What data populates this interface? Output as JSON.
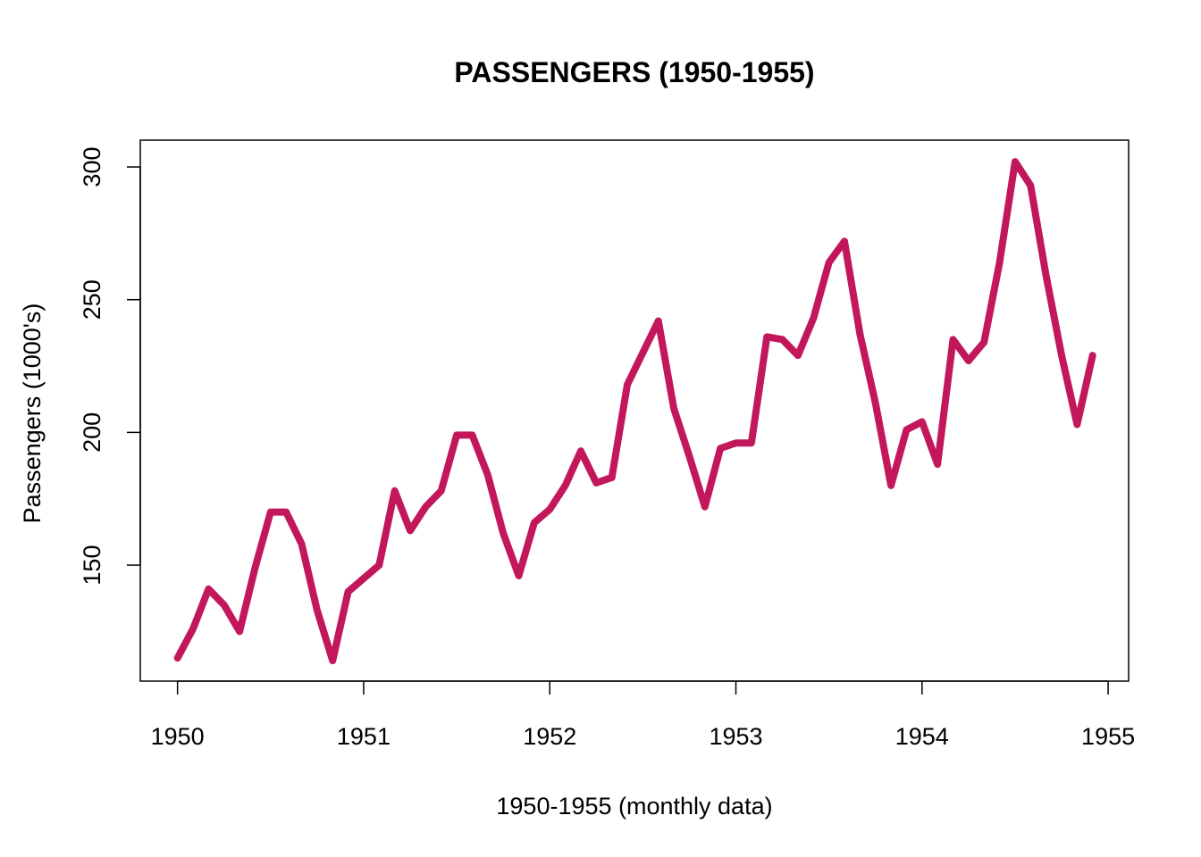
{
  "chart_data": {
    "type": "line",
    "title": "PASSENGERS (1950-1955)",
    "xlabel": "1950-1955 (monthly data)",
    "ylabel": "Passengers (1000's)",
    "xlim": [
      1949.8,
      1955.11
    ],
    "ylim": [
      106.3,
      310.1
    ],
    "x_ticks": [
      1950,
      1951,
      1952,
      1953,
      1954,
      1955
    ],
    "x_tick_labels": [
      "1950",
      "1951",
      "1952",
      "1953",
      "1954",
      "1955"
    ],
    "y_ticks": [
      150,
      200,
      250,
      300
    ],
    "y_tick_labels": [
      "150",
      "200",
      "250",
      "300"
    ],
    "grid": false,
    "line_color": "#C2185B",
    "series": [
      {
        "name": "Passengers",
        "start": 1950,
        "frequency": 12,
        "values": [
          115,
          126,
          141,
          135,
          125,
          149,
          170,
          170,
          158,
          133,
          114,
          140,
          145,
          150,
          178,
          163,
          172,
          178,
          199,
          199,
          184,
          162,
          146,
          166,
          171,
          180,
          193,
          181,
          183,
          218,
          230,
          242,
          209,
          191,
          172,
          194,
          196,
          196,
          236,
          235,
          229,
          243,
          264,
          272,
          237,
          211,
          180,
          201,
          204,
          188,
          235,
          227,
          234,
          264,
          302,
          293,
          259,
          229,
          203,
          229
        ]
      }
    ]
  }
}
